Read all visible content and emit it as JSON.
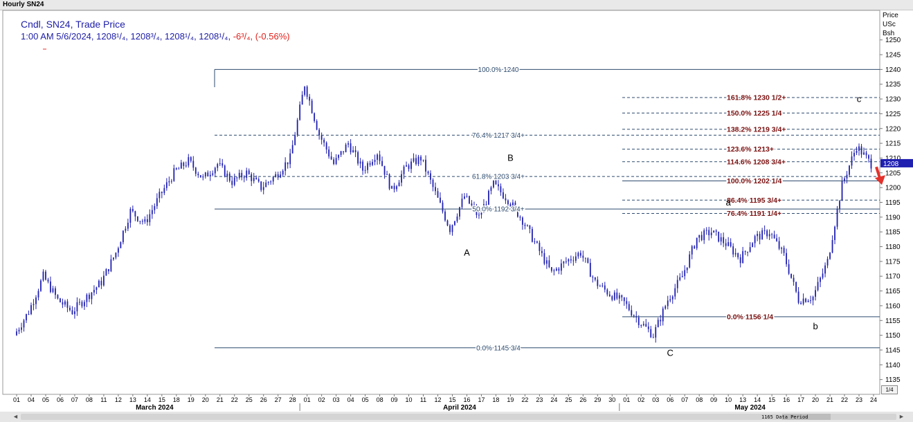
{
  "window": {
    "title": "Hourly SN24"
  },
  "legend": {
    "line1": "Cndl, SN24, Trade Price",
    "line2_prefix": "1:00 AM 5/6/2024, 1208¹/₄, 1208³/₄, 1208¹/₄, 1208¹/₄,",
    "change": "-6³/₄, (-0.56%)"
  },
  "price_axis": {
    "unit_lines": [
      "Price",
      "USc",
      "Bsh"
    ],
    "current_price_tag": "1208"
  },
  "footer": {
    "period_label": "1165 Data Period",
    "page": "1/4",
    "scroll_left": "◄",
    "scroll_right": "►"
  },
  "colors": {
    "candles": "#1f1fb0",
    "retracement_lines": "#2c4a6e",
    "extension_labels": "#7a1010",
    "arrow": "#e3322c",
    "price_tag": "#1f1fb0"
  },
  "chart_data": {
    "type": "line",
    "title": "Hourly SN24",
    "xlabel": "",
    "ylabel": "Price USc Bsh",
    "ylim": [
      1130,
      1260
    ],
    "yticks": [
      1135,
      1140,
      1145,
      1150,
      1155,
      1160,
      1165,
      1170,
      1175,
      1180,
      1185,
      1190,
      1195,
      1200,
      1205,
      1210,
      1215,
      1220,
      1225,
      1230,
      1235,
      1240,
      1245,
      1250
    ],
    "x_tick_labels": [
      "01",
      "04",
      "05",
      "06",
      "07",
      "08",
      "11",
      "12",
      "13",
      "14",
      "15",
      "18",
      "19",
      "20",
      "21",
      "22",
      "25",
      "26",
      "27",
      "28",
      "01",
      "02",
      "03",
      "04",
      "05",
      "08",
      "09",
      "10",
      "11",
      "12",
      "15",
      "16",
      "17",
      "18",
      "19",
      "22",
      "23",
      "24",
      "25",
      "26",
      "29",
      "30",
      "01",
      "02",
      "03",
      "06",
      "07",
      "08",
      "09",
      "10",
      "13",
      "14",
      "15",
      "16",
      "17",
      "20",
      "21",
      "22",
      "23",
      "24"
    ],
    "x_month_labels": [
      "March 2024",
      "April 2024",
      "May 2024"
    ],
    "series": [
      {
        "points": [
          [
            0,
            1150
          ],
          [
            1,
            1158
          ],
          [
            2,
            1170
          ],
          [
            3,
            1162
          ],
          [
            4,
            1158
          ],
          [
            5,
            1163
          ],
          [
            6,
            1168
          ],
          [
            7,
            1178
          ],
          [
            8,
            1192
          ],
          [
            9,
            1188
          ],
          [
            10,
            1197
          ],
          [
            11,
            1205
          ],
          [
            12,
            1209
          ],
          [
            13,
            1203
          ],
          [
            14,
            1208
          ],
          [
            15,
            1202
          ],
          [
            16,
            1205
          ],
          [
            17,
            1200
          ],
          [
            18,
            1204
          ],
          [
            19,
            1210
          ],
          [
            20,
            1235
          ],
          [
            21,
            1218
          ],
          [
            22,
            1208
          ],
          [
            23,
            1215
          ],
          [
            24,
            1206
          ],
          [
            25,
            1212
          ],
          [
            26,
            1199
          ],
          [
            27,
            1207
          ],
          [
            28,
            1210
          ],
          [
            29,
            1198
          ],
          [
            30,
            1186
          ],
          [
            31,
            1197
          ],
          [
            32,
            1190
          ],
          [
            33,
            1201
          ],
          [
            34,
            1196
          ],
          [
            35,
            1189
          ],
          [
            36,
            1180
          ],
          [
            37,
            1171
          ],
          [
            38,
            1175
          ],
          [
            39,
            1178
          ],
          [
            40,
            1168
          ],
          [
            41,
            1164
          ],
          [
            42,
            1161
          ],
          [
            43,
            1155
          ],
          [
            44,
            1150
          ],
          [
            45,
            1162
          ],
          [
            46,
            1170
          ],
          [
            47,
            1183
          ],
          [
            48,
            1185
          ],
          [
            49,
            1181
          ],
          [
            50,
            1176
          ],
          [
            51,
            1183
          ],
          [
            52,
            1185
          ],
          [
            53,
            1177
          ],
          [
            54,
            1162
          ],
          [
            55,
            1163
          ],
          [
            56,
            1175
          ],
          [
            57,
            1201
          ],
          [
            58,
            1214
          ],
          [
            59,
            1208
          ]
        ]
      }
    ],
    "fib_levels": [
      {
        "label": "100.0%",
        "value_text": "1240",
        "group": "retracement"
      },
      {
        "label": "76.4%",
        "value_text": "1217 3/4+",
        "group": "retracement"
      },
      {
        "label": "61.8%",
        "value_text": "1203 3/4+",
        "group": "retracement"
      },
      {
        "label": "50.0%",
        "value_text": "1192 3/4+",
        "group": "retracement"
      },
      {
        "label": "0.0%",
        "value_text": "1145 3/4",
        "group": "retracement"
      },
      {
        "label": "161.8%",
        "value_text": "1230 1/2+",
        "group": "extension"
      },
      {
        "label": "150.0%",
        "value_text": "1225 1/4",
        "group": "extension"
      },
      {
        "label": "138.2%",
        "value_text": "1219 3/4+",
        "group": "extension"
      },
      {
        "label": "123.6%",
        "value_text": "1213+",
        "group": "extension"
      },
      {
        "label": "114.6%",
        "value_text": "1208 3/4+",
        "group": "extension"
      },
      {
        "label": "100.0%",
        "value_text": "1202 1/4",
        "group": "extension"
      },
      {
        "label": "86.4%",
        "value_text": "1195 3/4+",
        "group": "extension"
      },
      {
        "label": "76.4%",
        "value_text": "1191 1/4+",
        "group": "extension"
      },
      {
        "label": "0.0%",
        "value_text": "1156 1/4",
        "group": "extension"
      }
    ],
    "wave_labels": [
      {
        "text": "A",
        "x": 31,
        "y": 1177
      },
      {
        "text": "B",
        "x": 34,
        "y": 1209
      },
      {
        "text": "C",
        "x": 45,
        "y": 1143
      },
      {
        "text": "a",
        "x": 49,
        "y": 1194
      },
      {
        "text": "b",
        "x": 55,
        "y": 1152
      },
      {
        "text": "c",
        "x": 58,
        "y": 1229
      }
    ]
  }
}
